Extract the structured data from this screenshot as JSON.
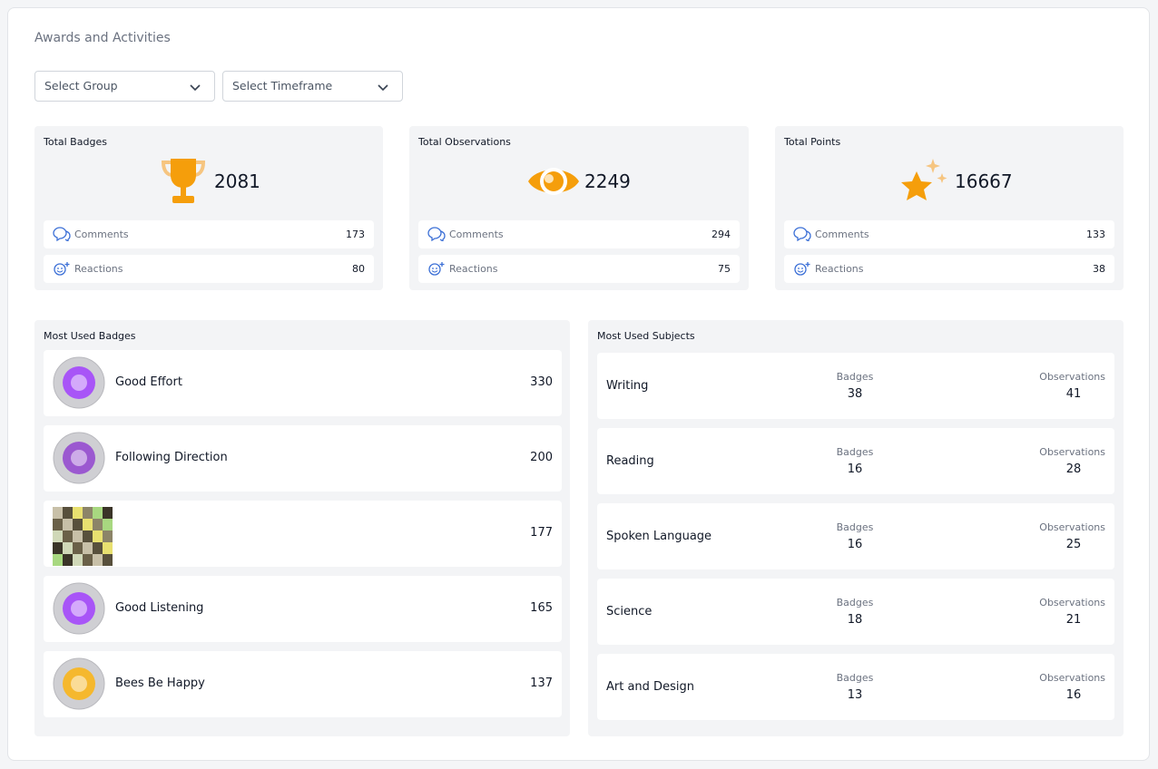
{
  "header": {
    "title": "Awards and Activities"
  },
  "filters": [
    "Select Group",
    "Select Timeframe"
  ],
  "summary_cards": [
    {
      "title": "Total Badges",
      "total": 2081,
      "comments_label": "Comments",
      "comments": 173,
      "reactions_label": "Reactions",
      "reactions": 80
    },
    {
      "title": "Total Observations",
      "total": 2249,
      "comments_label": "Comments",
      "comments": 294,
      "reactions_label": "Reactions",
      "reactions": 75
    },
    {
      "title": "Total Points",
      "total": 16667,
      "comments_label": "Comments",
      "comments": 133,
      "reactions_label": "Reactions",
      "reactions": 38
    }
  ],
  "most_used_badges": {
    "title": "Most Used Badges",
    "items": [
      {
        "name": "Good Effort",
        "count": 330
      },
      {
        "name": "Following Direction",
        "count": 200
      },
      {
        "name": null,
        "count": 177
      },
      {
        "name": "Good Listening",
        "count": 165
      },
      {
        "name": "Bees Be Happy",
        "count": 137
      }
    ]
  },
  "most_used_subjects": {
    "title": "Most Used Subjects",
    "badges_label": "Badges",
    "observations_label": "Observations",
    "items": [
      {
        "name": "Writing",
        "badges": 38,
        "observations": 41
      },
      {
        "name": "Reading",
        "badges": 16,
        "observations": 28
      },
      {
        "name": "Spoken Language",
        "badges": 16,
        "observations": 25
      },
      {
        "name": "Science",
        "badges": 18,
        "observations": 21
      },
      {
        "name": "Art and Design",
        "badges": 13,
        "observations": 16
      }
    ]
  }
}
